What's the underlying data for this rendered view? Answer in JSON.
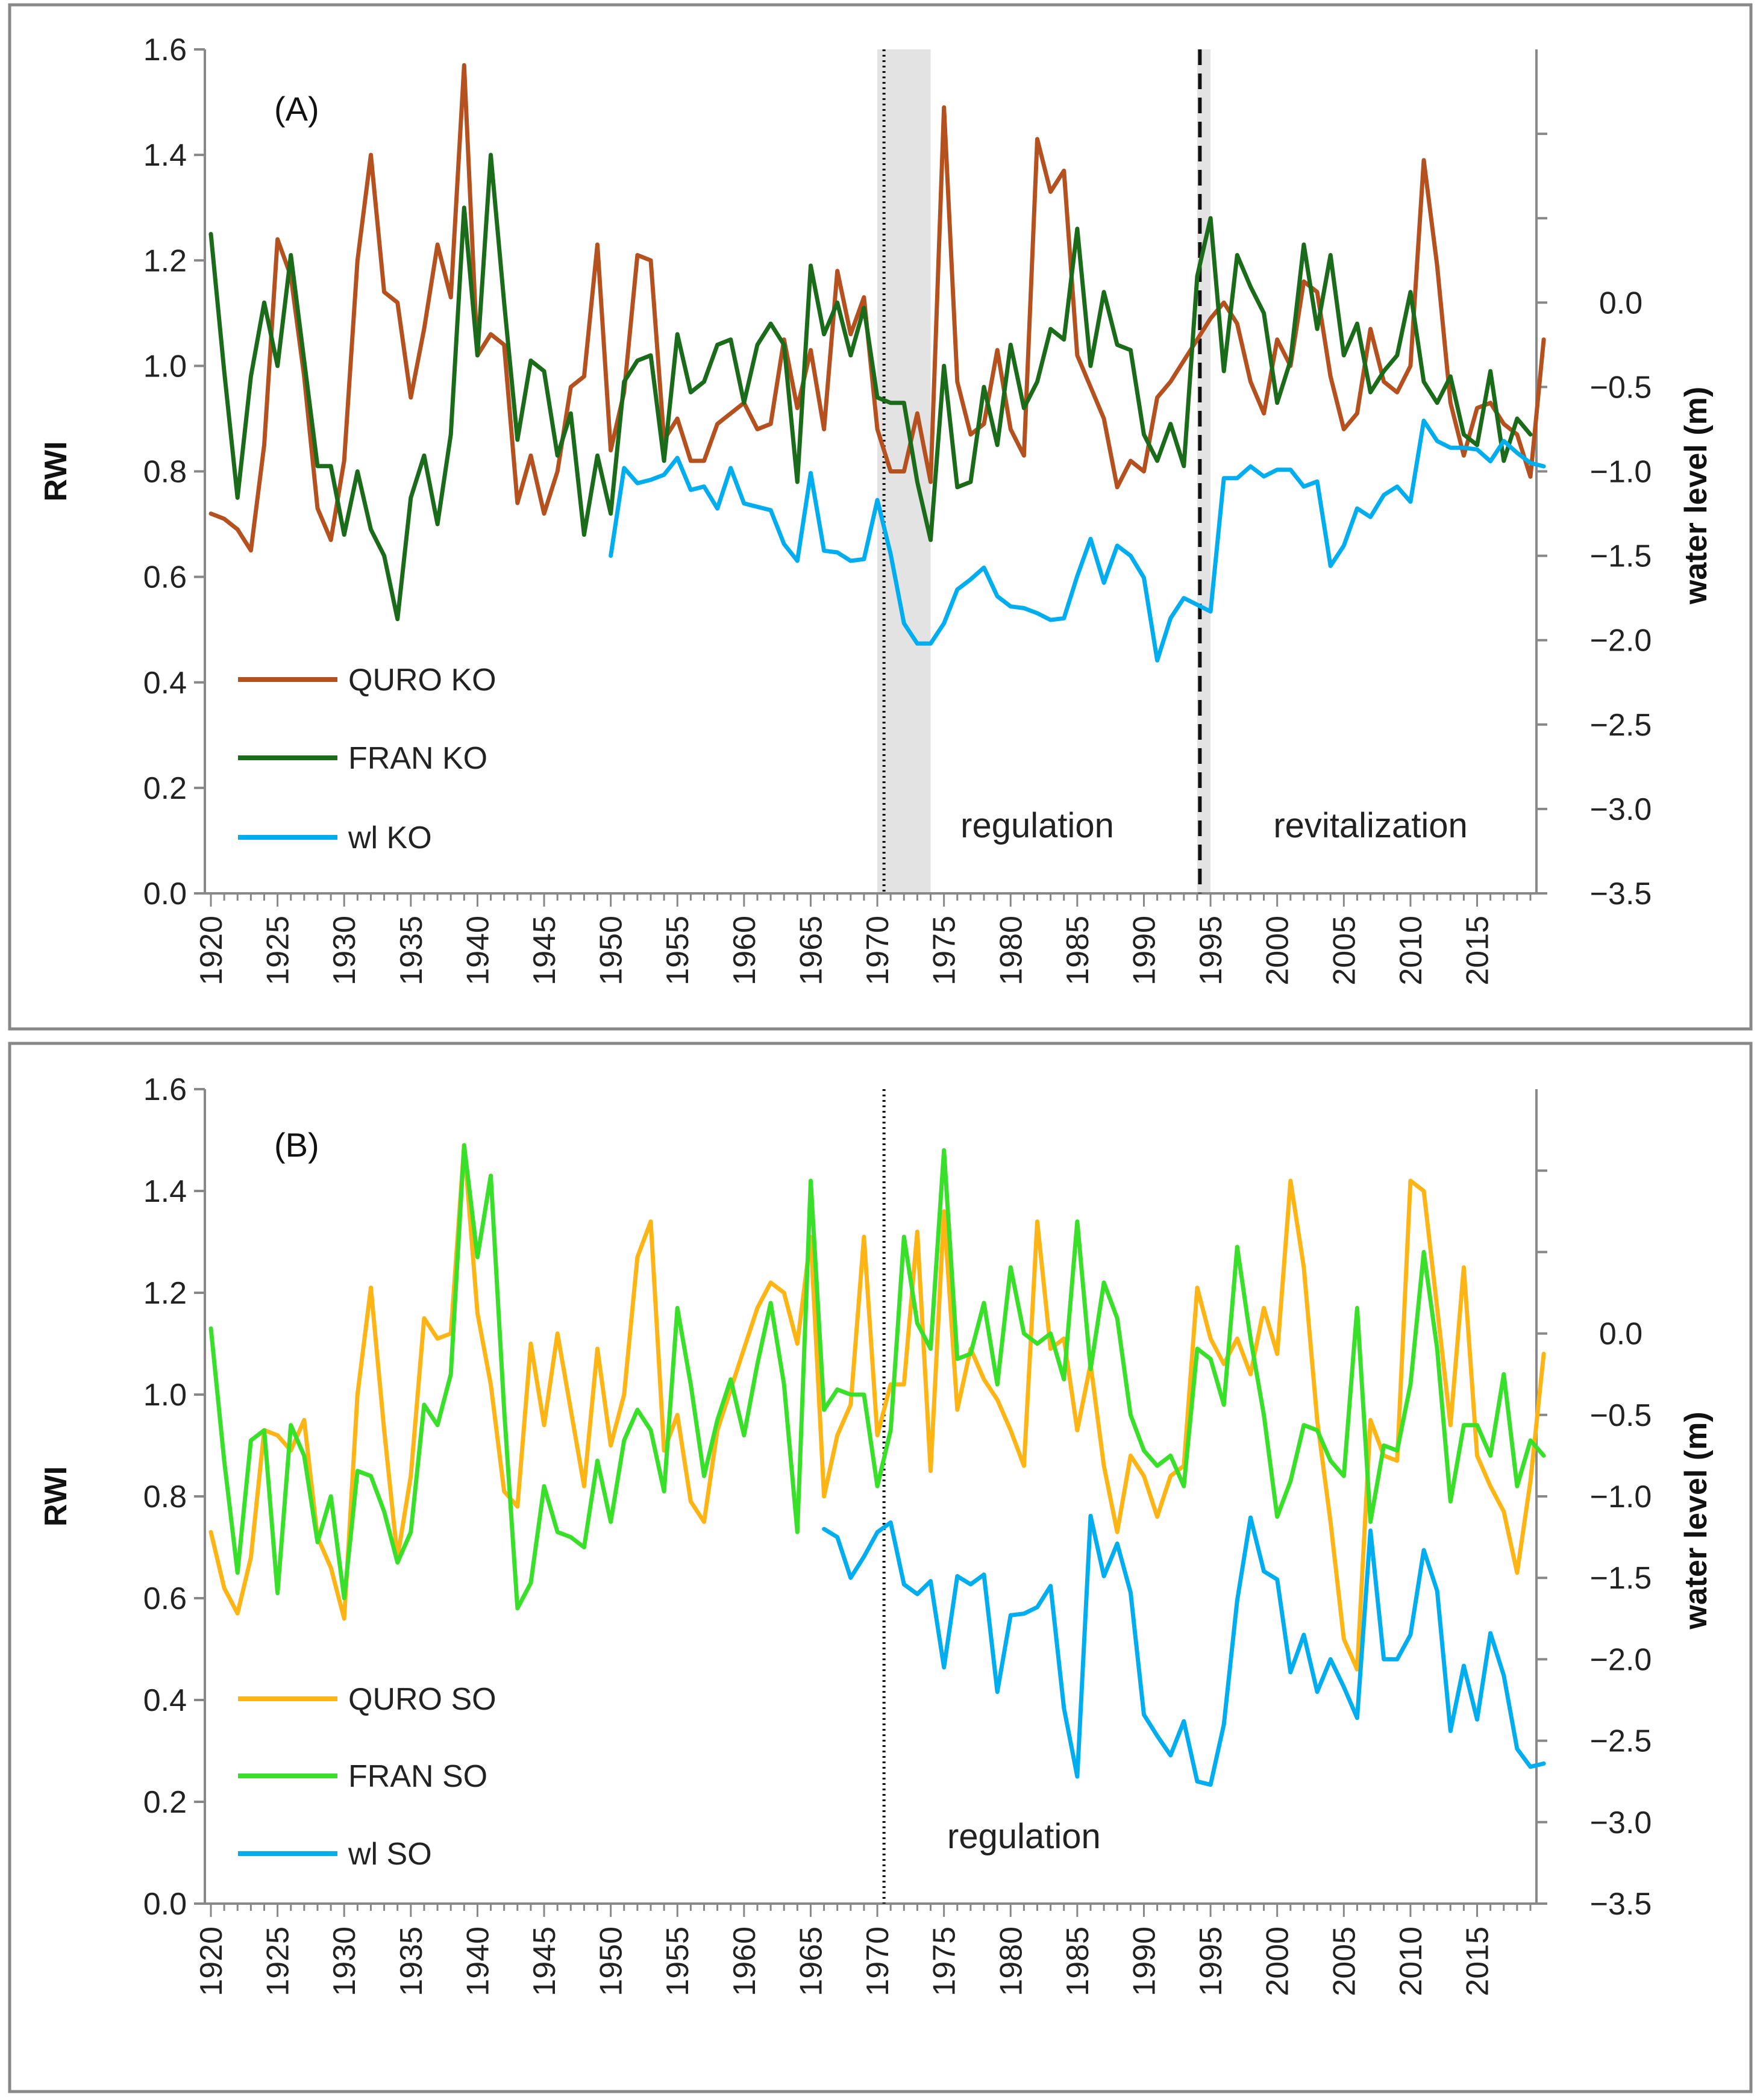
{
  "chart_data": [
    {
      "type": "line",
      "panel_label": "(A)",
      "ylabel_left": "RWI",
      "ylabel_right": "water level (m)",
      "x_ticks": [
        "1920",
        "1925",
        "1930",
        "1935",
        "1940",
        "1945",
        "1950",
        "1955",
        "1960",
        "1965",
        "1970",
        "1975",
        "1980",
        "1985",
        "1990",
        "1995",
        "2000",
        "2005",
        "2010",
        "2015"
      ],
      "y_left_ticks": [
        "0.0",
        "0.2",
        "0.4",
        "0.6",
        "0.8",
        "1.0",
        "1.2",
        "1.4",
        "1.6"
      ],
      "y_right_ticks": [
        "-3.5",
        "-3.0",
        "-2.5",
        "-2.0",
        "-1.5",
        "-1.0",
        "-0.5",
        "0.0"
      ],
      "xlim": [
        1920,
        2019
      ],
      "ylim_left": [
        0,
        1.6
      ],
      "ylim_right": [
        -3.5,
        1.5
      ],
      "grid": false,
      "legend_position": "bottom-left",
      "shaded_periods": [
        [
          1970,
          1974
        ],
        [
          1994,
          1995
        ]
      ],
      "vlines": [
        {
          "x": 1970.5,
          "style": "dotted"
        },
        {
          "x": 1994.2,
          "style": "dashed"
        }
      ],
      "annotations": [
        {
          "text": "regulation",
          "x": 1982
        },
        {
          "text": "revitalization",
          "x": 2007
        }
      ],
      "series": [
        {
          "name": "QURO KO",
          "color": "#b5501f",
          "axis": "left",
          "x_start": 1920,
          "values": [
            0.72,
            0.71,
            0.69,
            0.65,
            0.85,
            1.24,
            1.17,
            0.98,
            0.73,
            0.67,
            0.82,
            1.2,
            1.4,
            1.14,
            1.12,
            0.94,
            1.07,
            1.23,
            1.13,
            1.57,
            1.02,
            1.06,
            1.04,
            0.74,
            0.83,
            0.72,
            0.8,
            0.96,
            0.98,
            1.23,
            0.84,
            0.95,
            1.21,
            1.2,
            0.86,
            0.9,
            0.82,
            0.82,
            0.89,
            0.91,
            0.93,
            0.88,
            0.89,
            1.05,
            0.92,
            1.03,
            0.88,
            1.18,
            1.06,
            1.13,
            0.88,
            0.8,
            0.8,
            0.91,
            0.78,
            1.49,
            0.97,
            0.87,
            0.89,
            1.03,
            0.88,
            0.83,
            1.43,
            1.33,
            1.37,
            1.02,
            0.96,
            0.9,
            0.77,
            0.82,
            0.8,
            0.94,
            0.97,
            1.01,
            1.05,
            1.09,
            1.12,
            1.08,
            0.97,
            0.91,
            1.05,
            1.0,
            1.16,
            1.14,
            0.98,
            0.88,
            0.91,
            1.07,
            0.97,
            0.95,
            1.0,
            1.39,
            1.19,
            0.93,
            0.83,
            0.92,
            0.93,
            0.89,
            0.87,
            0.79,
            1.05
          ]
        },
        {
          "name": "FRAN KO",
          "color": "#1a6b1a",
          "axis": "left",
          "x_start": 1920,
          "values": [
            1.25,
            0.99,
            0.75,
            0.98,
            1.12,
            1.0,
            1.21,
            1.01,
            0.81,
            0.81,
            0.68,
            0.8,
            0.69,
            0.64,
            0.52,
            0.75,
            0.83,
            0.7,
            0.87,
            1.3,
            1.02,
            1.4,
            1.12,
            0.86,
            1.01,
            0.99,
            0.83,
            0.91,
            0.68,
            0.83,
            0.72,
            0.97,
            1.01,
            1.02,
            0.82,
            1.06,
            0.95,
            0.97,
            1.04,
            1.05,
            0.93,
            1.04,
            1.08,
            1.04,
            0.78,
            1.19,
            1.06,
            1.12,
            1.02,
            1.11,
            0.94,
            0.93,
            0.93,
            0.78,
            0.67,
            1.0,
            0.77,
            0.78,
            0.96,
            0.85,
            1.04,
            0.92,
            0.97,
            1.07,
            1.05,
            1.26,
            1.0,
            1.14,
            1.04,
            1.03,
            0.87,
            0.82,
            0.89,
            0.81,
            1.17,
            1.28,
            0.99,
            1.21,
            1.15,
            1.1,
            0.93,
            1.01,
            1.23,
            1.07,
            1.21,
            1.02,
            1.08,
            0.95,
            0.99,
            1.02,
            1.14,
            0.97,
            0.93,
            0.98,
            0.87,
            0.85,
            0.99,
            0.82,
            0.9,
            0.87
          ]
        },
        {
          "name": "wl KO",
          "color": "#00aeef",
          "axis": "right",
          "x_start": 1950,
          "values": [
            -1.5,
            -0.98,
            -1.07,
            -1.05,
            -1.02,
            -0.92,
            -1.11,
            -1.09,
            -1.22,
            -0.98,
            -1.19,
            -1.21,
            -1.23,
            -1.43,
            -1.53,
            -1.01,
            -1.47,
            -1.48,
            -1.53,
            -1.52,
            -1.17,
            -1.49,
            -1.9,
            -2.02,
            -2.02,
            -1.9,
            -1.7,
            -1.64,
            -1.57,
            -1.74,
            -1.8,
            -1.81,
            -1.84,
            -1.88,
            -1.87,
            -1.62,
            -1.4,
            -1.66,
            -1.44,
            -1.5,
            -1.63,
            -2.12,
            -1.87,
            -1.75,
            -1.79,
            -1.83,
            -1.04,
            -1.04,
            -0.97,
            -1.03,
            -0.99,
            -0.99,
            -1.09,
            -1.06,
            -1.56,
            -1.44,
            -1.22,
            -1.27,
            -1.14,
            -1.09,
            -1.18,
            -0.7,
            -0.82,
            -0.86,
            -0.86,
            -0.87,
            -0.94,
            -0.82,
            -0.89,
            -0.95,
            -0.97
          ]
        }
      ]
    },
    {
      "type": "line",
      "panel_label": "(B)",
      "ylabel_left": "RWI",
      "ylabel_right": "water  level (m)",
      "x_ticks": [
        "1920",
        "1925",
        "1930",
        "1935",
        "1940",
        "1945",
        "1950",
        "1955",
        "1960",
        "1965",
        "1970",
        "1975",
        "1980",
        "1985",
        "1990",
        "1995",
        "2000",
        "2005",
        "2010",
        "2015"
      ],
      "y_left_ticks": [
        "0.0",
        "0.2",
        "0.4",
        "0.6",
        "0.8",
        "1.0",
        "1.2",
        "1.4",
        "1.6"
      ],
      "y_right_ticks": [
        "-3.5",
        "-3.0",
        "-2.5",
        "-2.0",
        "-1.5",
        "-1.0",
        "-0.5",
        "0.0"
      ],
      "xlim": [
        1920,
        2019
      ],
      "ylim_left": [
        0,
        1.6
      ],
      "ylim_right": [
        -3.5,
        1.5
      ],
      "grid": false,
      "legend_position": "bottom-left",
      "shaded_periods": [],
      "vlines": [
        {
          "x": 1970.5,
          "style": "dotted"
        }
      ],
      "annotations": [
        {
          "text": "regulation",
          "x": 1981
        }
      ],
      "series": [
        {
          "name": "QURO SO",
          "color": "#fdb515",
          "axis": "left",
          "x_start": 1920,
          "values": [
            0.73,
            0.62,
            0.57,
            0.68,
            0.93,
            0.92,
            0.89,
            0.95,
            0.72,
            0.66,
            0.56,
            1.0,
            1.21,
            0.93,
            0.68,
            0.84,
            1.15,
            1.11,
            1.12,
            1.49,
            1.16,
            1.02,
            0.81,
            0.78,
            1.1,
            0.94,
            1.12,
            0.97,
            0.82,
            1.09,
            0.9,
            1.0,
            1.27,
            1.34,
            0.89,
            0.96,
            0.79,
            0.75,
            0.93,
            1.01,
            1.09,
            1.17,
            1.22,
            1.2,
            1.1,
            1.31,
            0.8,
            0.92,
            0.98,
            1.31,
            0.92,
            1.02,
            1.02,
            1.32,
            0.85,
            1.36,
            0.97,
            1.09,
            1.03,
            0.99,
            0.93,
            0.86,
            1.34,
            1.09,
            1.11,
            0.93,
            1.06,
            0.86,
            0.73,
            0.88,
            0.84,
            0.76,
            0.84,
            0.86,
            1.21,
            1.11,
            1.06,
            1.11,
            1.04,
            1.17,
            1.08,
            1.42,
            1.25,
            0.95,
            0.75,
            0.52,
            0.46,
            0.95,
            0.88,
            0.87,
            1.42,
            1.4,
            1.17,
            0.94,
            1.25,
            0.88,
            0.82,
            0.77,
            0.65,
            0.83,
            1.08
          ]
        },
        {
          "name": "FRAN SO",
          "color": "#39e02a",
          "axis": "left",
          "x_start": 1920,
          "values": [
            1.13,
            0.87,
            0.65,
            0.91,
            0.93,
            0.61,
            0.94,
            0.88,
            0.71,
            0.8,
            0.6,
            0.85,
            0.84,
            0.77,
            0.67,
            0.73,
            0.98,
            0.94,
            1.04,
            1.49,
            1.27,
            1.43,
            0.97,
            0.58,
            0.63,
            0.82,
            0.73,
            0.72,
            0.7,
            0.87,
            0.75,
            0.91,
            0.97,
            0.93,
            0.81,
            1.17,
            1.02,
            0.84,
            0.95,
            1.03,
            0.92,
            1.06,
            1.18,
            1.02,
            0.73,
            1.42,
            0.97,
            1.01,
            1.0,
            1.0,
            0.82,
            0.93,
            1.31,
            1.14,
            1.09,
            1.48,
            1.07,
            1.08,
            1.18,
            1.02,
            1.25,
            1.12,
            1.1,
            1.12,
            1.03,
            1.34,
            1.05,
            1.22,
            1.15,
            0.96,
            0.89,
            0.86,
            0.88,
            0.82,
            1.09,
            1.07,
            0.98,
            1.29,
            1.11,
            0.96,
            0.76,
            0.83,
            0.94,
            0.93,
            0.87,
            0.84,
            1.17,
            0.75,
            0.9,
            0.89,
            1.02,
            1.28,
            1.09,
            0.79,
            0.94,
            0.94,
            0.88,
            1.04,
            0.82,
            0.91,
            0.88
          ]
        },
        {
          "name": "wl SO",
          "color": "#00aeef",
          "axis": "right",
          "x_start": 1966,
          "values": [
            -1.2,
            -1.25,
            -1.5,
            -1.37,
            -1.22,
            -1.16,
            -1.54,
            -1.6,
            -1.52,
            -2.05,
            -1.49,
            -1.54,
            -1.48,
            -2.2,
            -1.73,
            -1.72,
            -1.68,
            -1.55,
            -2.3,
            -2.72,
            -1.12,
            -1.49,
            -1.29,
            -1.59,
            -2.34,
            -2.47,
            -2.59,
            -2.38,
            -2.75,
            -2.77,
            -2.4,
            -1.64,
            -1.13,
            -1.46,
            -1.51,
            -2.08,
            -1.85,
            -2.2,
            -2.0,
            -2.17,
            -2.36,
            -1.21,
            -2.0,
            -2.0,
            -1.85,
            -1.33,
            -1.58,
            -2.44,
            -2.04,
            -2.37,
            -1.84,
            -2.1,
            -2.55,
            -2.66,
            -2.64
          ]
        }
      ]
    }
  ]
}
